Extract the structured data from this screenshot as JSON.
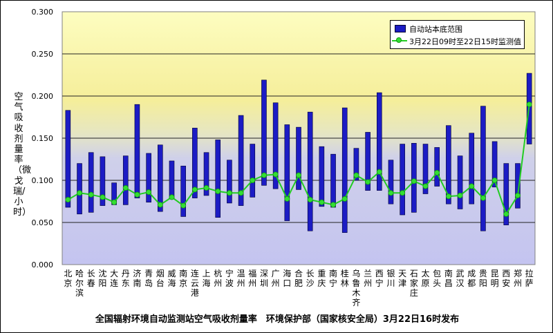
{
  "chart_data": {
    "type": "bar",
    "ylabel": "空气吸收剂量率（微戈瑞/小时）",
    "ylim": [
      0.0,
      0.3
    ],
    "yticks": [
      "0.000",
      "0.050",
      "0.100",
      "0.150",
      "0.200",
      "0.250",
      "0.300"
    ],
    "grid": true,
    "legend_position": "top-right",
    "caption": "全国辐射环境自动监测站空气吸收剂量率　环境保护部（国家核安全局）3月22日16时发布",
    "colors": {
      "bar": "#1c1cc4",
      "line": "#22cc22",
      "marker": "#33dd33"
    },
    "categories": [
      "北京",
      "哈尔滨",
      "长春",
      "沈阳",
      "大连",
      "丹东",
      "济南",
      "青岛",
      "烟台",
      "威海",
      "南京",
      "连云港",
      "上海",
      "杭州",
      "宁波",
      "温州",
      "福州",
      "深圳",
      "广州",
      "海口",
      "合肥",
      "长沙",
      "重庆",
      "南宁",
      "桂林",
      "乌鲁木齐",
      "兰州",
      "西宁",
      "银川",
      "天津",
      "石家庄",
      "太原",
      "包头",
      "南昌",
      "武汉",
      "成都",
      "贵阳",
      "昆明",
      "西安",
      "郑州",
      "拉萨"
    ],
    "series": [
      {
        "name": "自动站本底范围",
        "kind": "range-bar",
        "low": [
          0.068,
          0.06,
          0.062,
          0.07,
          0.071,
          0.071,
          0.079,
          0.074,
          0.063,
          0.078,
          0.057,
          0.079,
          0.082,
          0.056,
          0.073,
          0.07,
          0.08,
          0.094,
          0.09,
          0.052,
          0.089,
          0.04,
          0.069,
          0.068,
          0.038,
          0.1,
          0.088,
          0.088,
          0.072,
          0.059,
          0.062,
          0.084,
          0.093,
          0.072,
          0.066,
          0.072,
          0.04,
          0.092,
          0.047,
          0.067,
          0.143
        ],
        "high": [
          0.183,
          0.12,
          0.133,
          0.128,
          0.097,
          0.129,
          0.19,
          0.132,
          0.142,
          0.123,
          0.117,
          0.162,
          0.133,
          0.148,
          0.124,
          0.177,
          0.143,
          0.219,
          0.192,
          0.166,
          0.163,
          0.181,
          0.14,
          0.131,
          0.186,
          0.138,
          0.157,
          0.204,
          0.124,
          0.143,
          0.144,
          0.143,
          0.139,
          0.165,
          0.129,
          0.156,
          0.188,
          0.146,
          0.12,
          0.12,
          0.227
        ]
      },
      {
        "name": "3月22日09时至22日15时监测值",
        "kind": "line",
        "values": [
          0.077,
          0.085,
          0.083,
          0.08,
          0.074,
          0.091,
          0.083,
          0.086,
          0.071,
          0.08,
          0.07,
          0.089,
          0.091,
          0.087,
          0.085,
          0.085,
          0.1,
          0.106,
          0.107,
          0.078,
          0.106,
          0.077,
          0.074,
          0.071,
          0.078,
          0.106,
          0.098,
          0.11,
          0.085,
          0.085,
          0.099,
          0.093,
          0.109,
          0.081,
          0.082,
          0.093,
          0.079,
          0.1,
          0.06,
          0.082,
          0.19
        ]
      }
    ]
  }
}
